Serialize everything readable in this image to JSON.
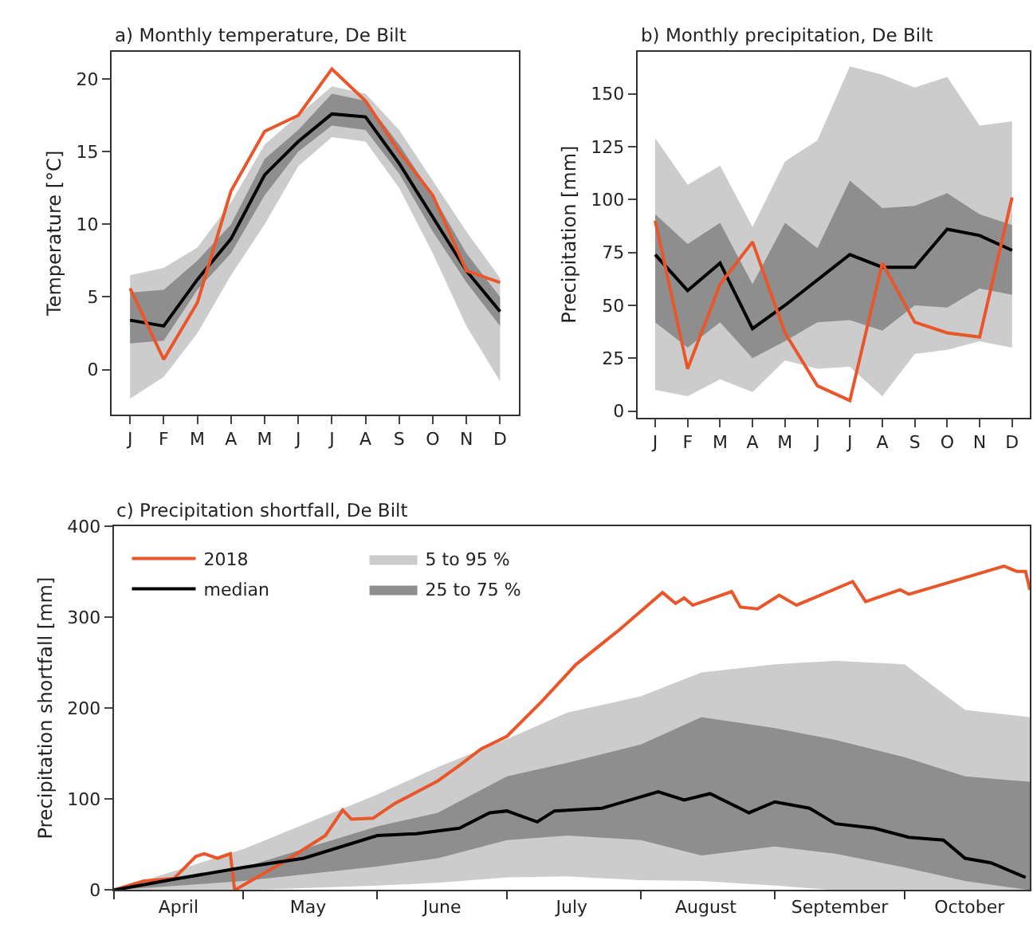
{
  "chart_data": [
    {
      "type": "line",
      "title": "a) Monthly temperature, De Bilt",
      "ylabel": "Temperature [°C]",
      "categories": [
        "J",
        "F",
        "M",
        "A",
        "M",
        "J",
        "J",
        "A",
        "S",
        "O",
        "N",
        "D"
      ],
      "ylim": [
        -3.1,
        21.9
      ],
      "yticks": [
        0,
        5,
        10,
        15,
        20
      ],
      "legend": false,
      "series": [
        {
          "color": "#cccccc",
          "values": [
            null,
            null,
            null,
            null,
            null,
            null,
            null,
            null,
            null,
            null,
            null,
            null
          ],
          "lower": [
            -2.0,
            -0.5,
            2.5,
            6.5,
            10.0,
            14.0,
            16.0,
            15.7,
            12.5,
            8.0,
            3.0,
            -0.8
          ],
          "upper": [
            6.5,
            7.0,
            8.4,
            11.5,
            15.5,
            17.5,
            19.5,
            19.0,
            16.5,
            13.0,
            9.5,
            6.3
          ]
        },
        {
          "color": "#8e8e8e",
          "values": [
            null,
            null,
            null,
            null,
            null,
            null,
            null,
            null,
            null,
            null,
            null,
            null
          ],
          "lower": [
            1.8,
            2.0,
            5.5,
            8.0,
            12.0,
            15.0,
            16.8,
            16.5,
            13.5,
            9.5,
            6.0,
            3.0
          ],
          "upper": [
            5.3,
            5.5,
            7.5,
            10.0,
            14.5,
            16.5,
            19.0,
            18.5,
            15.5,
            12.0,
            8.0,
            5.0
          ]
        },
        {
          "color": "#000000",
          "values": [
            3.4,
            3.0,
            6.2,
            9.0,
            13.4,
            15.7,
            17.6,
            17.4,
            14.2,
            10.5,
            6.8,
            4.0
          ]
        },
        {
          "color": "#e8562a",
          "values": [
            5.6,
            0.7,
            4.6,
            12.3,
            16.4,
            17.5,
            20.7,
            18.5,
            15.0,
            12.0,
            6.8,
            6.0
          ]
        }
      ]
    },
    {
      "type": "line",
      "title": "b) Monthly precipitation, De Bilt",
      "ylabel": "Precipitation [mm]",
      "categories": [
        "J",
        "F",
        "M",
        "A",
        "M",
        "J",
        "J",
        "A",
        "S",
        "O",
        "N",
        "D"
      ],
      "ylim": [
        -3,
        170
      ],
      "yticks": [
        0,
        25,
        50,
        75,
        100,
        125,
        150
      ],
      "legend": false,
      "series": [
        {
          "color": "#cccccc",
          "values": [
            null,
            null,
            null,
            null,
            null,
            null,
            null,
            null,
            null,
            null,
            null,
            null
          ],
          "lower": [
            10,
            7,
            15,
            9,
            24,
            20,
            21,
            7,
            27,
            29,
            33,
            30
          ],
          "upper": [
            129,
            107,
            116,
            87,
            118,
            128,
            163,
            159,
            153,
            158,
            135,
            137
          ]
        },
        {
          "color": "#8e8e8e",
          "values": [
            null,
            null,
            null,
            null,
            null,
            null,
            null,
            null,
            null,
            null,
            null,
            null
          ],
          "lower": [
            42,
            30,
            42,
            25,
            33,
            42,
            43,
            38,
            50,
            49,
            58,
            55
          ],
          "upper": [
            93,
            79,
            89,
            60,
            89,
            77,
            109,
            96,
            97,
            103,
            93,
            88
          ]
        },
        {
          "color": "#000000",
          "values": [
            74,
            57,
            70,
            39,
            50,
            62,
            74,
            68,
            68,
            86,
            83,
            76
          ]
        },
        {
          "color": "#e8562a",
          "values": [
            90,
            20,
            60,
            80,
            37,
            12,
            5,
            70,
            42,
            37,
            35,
            101
          ]
        }
      ]
    },
    {
      "type": "line",
      "title": "c) Precipitation shortfall, De Bilt",
      "ylabel": "Precipitation shortfall [mm]",
      "xlim": [
        "2018-04-01",
        "2018-10-30"
      ],
      "xticks": [
        {
          "value": "2018-04-01",
          "label": null
        },
        {
          "value": "2018-05-01",
          "label": null
        },
        {
          "value": "2018-06-01",
          "label": null
        },
        {
          "value": "2018-07-01",
          "label": null
        },
        {
          "value": "2018-08-01",
          "label": null
        },
        {
          "value": "2018-09-01",
          "label": null
        },
        {
          "value": "2018-10-01",
          "label": null
        },
        {
          "value": "2018-04-16",
          "label": "April"
        },
        {
          "value": "2018-05-16",
          "label": "May"
        },
        {
          "value": "2018-06-16",
          "label": "June"
        },
        {
          "value": "2018-07-16",
          "label": "July"
        },
        {
          "value": "2018-08-16",
          "label": "August"
        },
        {
          "value": "2018-09-16",
          "label": "September"
        },
        {
          "value": "2018-10-16",
          "label": "October"
        }
      ],
      "ylim": [
        0,
        400
      ],
      "yticks": [
        0,
        100,
        200,
        300,
        400
      ],
      "legend": "top left",
      "series": [
        {
          "name": "5 to 95 %",
          "color": "#cccccc",
          "x": [
            "2018-04-01",
            "2018-05-01",
            "2018-06-01",
            "2018-06-15",
            "2018-07-01",
            "2018-07-15",
            "2018-08-01",
            "2018-08-15",
            "2018-09-01",
            "2018-09-15",
            "2018-10-01",
            "2018-10-15",
            "2018-10-30"
          ],
          "values": [
            null,
            null,
            null,
            null,
            null,
            null,
            null,
            null,
            null,
            null,
            null,
            null,
            null
          ],
          "lower": [
            0,
            0,
            5,
            8,
            14,
            15,
            11,
            10,
            5,
            0,
            0,
            0,
            0
          ],
          "upper": [
            0,
            45,
            105,
            135,
            166,
            195,
            213,
            239,
            248,
            252,
            248,
            198,
            190
          ]
        },
        {
          "name": "25 to 75 %",
          "color": "#8e8e8e",
          "x": [
            "2018-04-01",
            "2018-05-01",
            "2018-06-01",
            "2018-06-15",
            "2018-07-01",
            "2018-07-15",
            "2018-08-01",
            "2018-08-15",
            "2018-09-01",
            "2018-09-15",
            "2018-10-01",
            "2018-10-15",
            "2018-10-30"
          ],
          "values": [
            null,
            null,
            null,
            null,
            null,
            null,
            null,
            null,
            null,
            null,
            null,
            null,
            null
          ],
          "lower": [
            0,
            10,
            26,
            35,
            55,
            60,
            55,
            38,
            48,
            40,
            25,
            10,
            0
          ],
          "upper": [
            0,
            25,
            70,
            85,
            125,
            140,
            160,
            190,
            178,
            165,
            146,
            125,
            119
          ]
        },
        {
          "name": "2018",
          "color": "#e8562a",
          "x": [
            "2018-04-01",
            "2018-04-08",
            "2018-04-15",
            "2018-04-20",
            "2018-04-22",
            "2018-04-25",
            "2018-04-28",
            "2018-04-29",
            "2018-05-10",
            "2018-05-20",
            "2018-05-24",
            "2018-05-26",
            "2018-05-31",
            "2018-06-05",
            "2018-06-15",
            "2018-06-20",
            "2018-06-25",
            "2018-07-01",
            "2018-07-09",
            "2018-07-17",
            "2018-07-27",
            "2018-08-06",
            "2018-08-09",
            "2018-08-11",
            "2018-08-13",
            "2018-08-22",
            "2018-08-24",
            "2018-08-28",
            "2018-09-02",
            "2018-09-06",
            "2018-09-19",
            "2018-09-22",
            "2018-09-30",
            "2018-10-02",
            "2018-10-24",
            "2018-10-27",
            "2018-10-29",
            "2018-10-30"
          ],
          "values": [
            0,
            10,
            13,
            37,
            40,
            35,
            40,
            0,
            30,
            60,
            88,
            78,
            79,
            95,
            120,
            137,
            155,
            169,
            207,
            248,
            286,
            327,
            315,
            321,
            313,
            328,
            311,
            309,
            324,
            313,
            339,
            317,
            330,
            325,
            356,
            350,
            350,
            330
          ]
        },
        {
          "name": "median",
          "color": "#000000",
          "x": [
            "2018-04-01",
            "2018-04-15",
            "2018-05-01",
            "2018-05-15",
            "2018-06-01",
            "2018-06-10",
            "2018-06-20",
            "2018-06-27",
            "2018-07-01",
            "2018-07-08",
            "2018-07-12",
            "2018-07-23",
            "2018-08-05",
            "2018-08-11",
            "2018-08-17",
            "2018-08-26",
            "2018-09-01",
            "2018-09-09",
            "2018-09-15",
            "2018-09-24",
            "2018-10-02",
            "2018-10-10",
            "2018-10-15",
            "2018-10-21",
            "2018-10-29"
          ],
          "values": [
            0,
            12,
            25,
            35,
            60,
            62,
            68,
            85,
            87,
            75,
            87,
            90,
            108,
            99,
            106,
            85,
            97,
            90,
            73,
            68,
            58,
            55,
            35,
            30,
            14
          ]
        }
      ]
    }
  ]
}
